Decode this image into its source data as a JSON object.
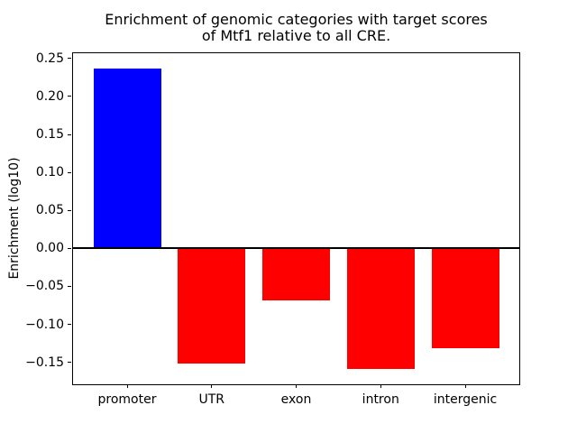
{
  "figure": {
    "title_line1": "Enrichment of genomic categories with target scores",
    "title_line2": "of Mtf1 relative to all CRE.",
    "background": "#ffffff"
  },
  "chart_data": {
    "type": "bar",
    "title": "Enrichment of genomic categories with target scores of Mtf1 relative to all CRE.",
    "categories": [
      "promoter",
      "UTR",
      "exon",
      "intron",
      "intergenic"
    ],
    "values": [
      0.237,
      -0.152,
      -0.069,
      -0.159,
      -0.132
    ],
    "bar_colors": [
      "#0000ff",
      "#ff0000",
      "#ff0000",
      "#ff0000",
      "#ff0000"
    ],
    "positive_color": "#0000ff",
    "negative_color": "#ff0000",
    "xlabel": "",
    "ylabel": "Enrichment (log10)",
    "ylim": [
      -0.179,
      0.257
    ],
    "xlim": [
      -0.64,
      4.64
    ],
    "bar_width": 0.8,
    "yticks": [
      0.25,
      0.2,
      0.15,
      0.1,
      0.05,
      0.0,
      -0.05,
      -0.1,
      -0.15
    ],
    "ytick_labels": [
      "0.25",
      "0.20",
      "0.15",
      "0.10",
      "0.05",
      "0.00",
      "−0.05",
      "−0.10",
      "−0.15"
    ],
    "grid": false,
    "legend": null,
    "zero_line": true,
    "axis_color": "#000000"
  }
}
